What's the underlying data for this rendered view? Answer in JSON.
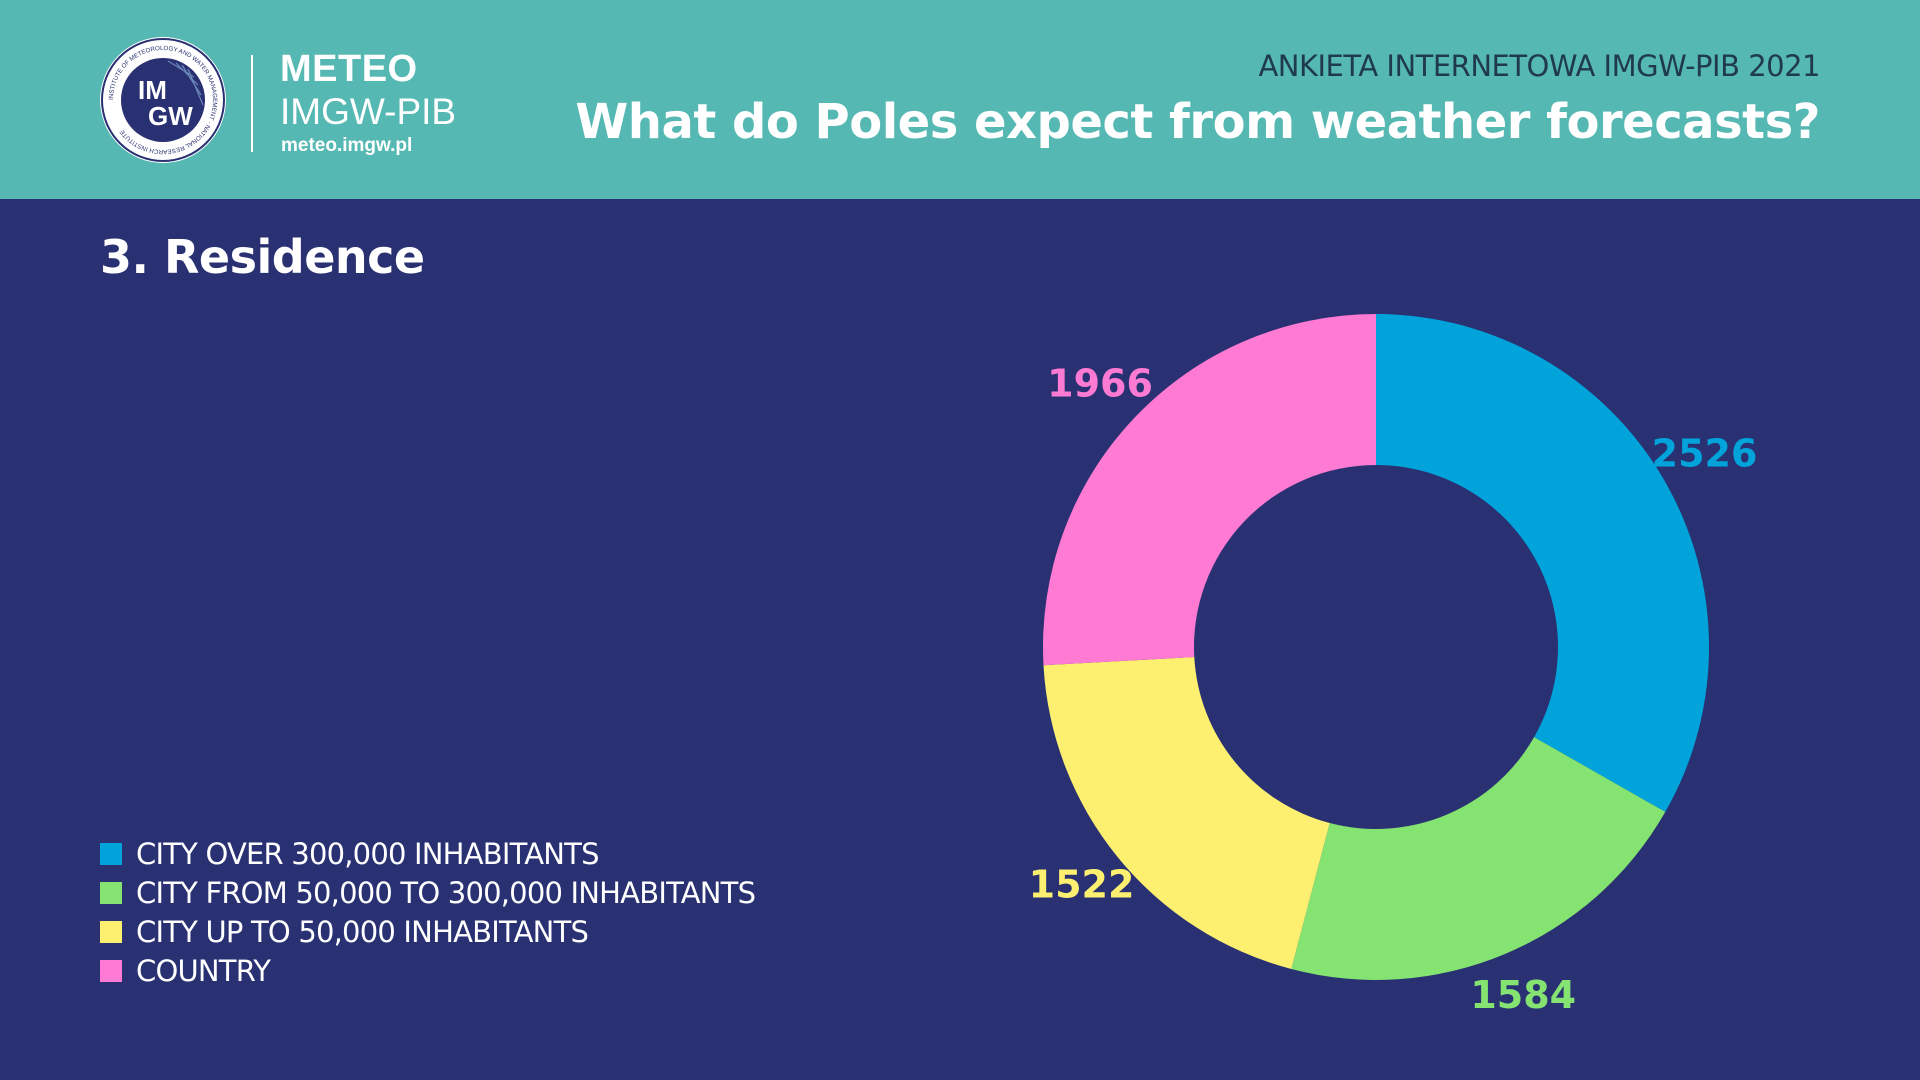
{
  "header": {
    "brand_line1": "METEO",
    "brand_line2": "IMGW-PIB",
    "brand_url": "meteo.imgw.pl",
    "logo_text_top": "IM",
    "logo_text_bottom": "GW",
    "logo_ring_text": "INSTITUTE OF METEOROLOGY AND WATER MANAGEMENT · NATIONAL RESEARCH INSTITUTE",
    "survey_title": "ANKIETA INTERNETOWA IMGW-PIB 2021",
    "main_title": "What do Poles expect from weather forecasts?"
  },
  "section_title": "3. Residence",
  "colors": {
    "header_bg": "#56b8b3",
    "page_bg": "#293172"
  },
  "chart_data": {
    "type": "pie",
    "subtype": "donut",
    "title": "3. Residence",
    "legend_position": "bottom-left",
    "series": [
      {
        "name": "CITY OVER 300,000 INHABITANTS",
        "value": 2526,
        "color": "#00a4db"
      },
      {
        "name": "CITY FROM 50,000 TO 300,000 INHABITANTS",
        "value": 1584,
        "color": "#84e371"
      },
      {
        "name": "CITY UP TO 50,000 INHABITANTS",
        "value": 1522,
        "color": "#fdf070"
      },
      {
        "name": "COUNTRY",
        "value": 1966,
        "color": "#ff7ad3"
      }
    ]
  }
}
